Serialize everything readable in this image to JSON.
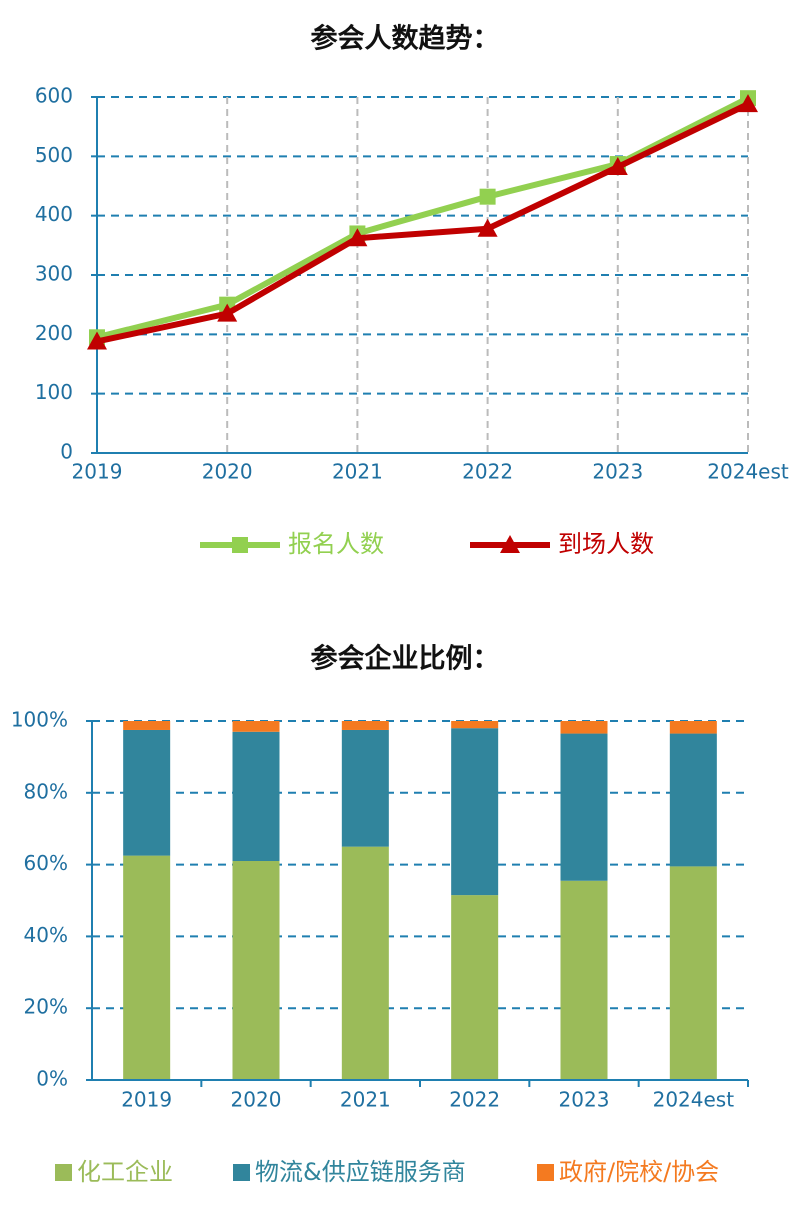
{
  "chart_data": [
    {
      "type": "line",
      "title": "参会人数趋势：",
      "categories": [
        "2019",
        "2020",
        "2021",
        "2022",
        "2023",
        "2024est"
      ],
      "series": [
        {
          "name": "报名人数",
          "color": "#92d050",
          "marker": "square",
          "values": [
            195,
            250,
            370,
            432,
            487,
            598
          ]
        },
        {
          "name": "到场人数",
          "color": "#c00000",
          "marker": "triangle",
          "values": [
            188,
            235,
            362,
            378,
            482,
            588
          ]
        }
      ],
      "ylim": [
        0,
        600
      ],
      "yticks": [
        0,
        100,
        200,
        300,
        400,
        500,
        600
      ],
      "grid": true,
      "legend": "bottom"
    },
    {
      "type": "stacked-bar",
      "title": "参会企业比例：",
      "categories": [
        "2019",
        "2020",
        "2021",
        "2022",
        "2023",
        "2024est"
      ],
      "series": [
        {
          "name": "化工企业",
          "color": "#9bbb59",
          "values": [
            62.5,
            61,
            65,
            51.5,
            55.5,
            59.5
          ]
        },
        {
          "name": "物流&供应链服务商",
          "color": "#31859c",
          "values": [
            35,
            36,
            32.5,
            46.5,
            41,
            37
          ]
        },
        {
          "name": "政府/院校/协会",
          "color": "#f47a20",
          "values": [
            2.5,
            3,
            2.5,
            2,
            3.5,
            3.5
          ]
        }
      ],
      "ylim": [
        0,
        100
      ],
      "yticks": [
        {
          "value": 0,
          "label": "0%"
        },
        {
          "value": 20,
          "label": "20%"
        },
        {
          "value": 40,
          "label": "40%"
        },
        {
          "value": 60,
          "label": "60%"
        },
        {
          "value": 80,
          "label": "80%"
        },
        {
          "value": 100,
          "label": "100%"
        }
      ],
      "grid": true,
      "legend": "bottom"
    }
  ]
}
